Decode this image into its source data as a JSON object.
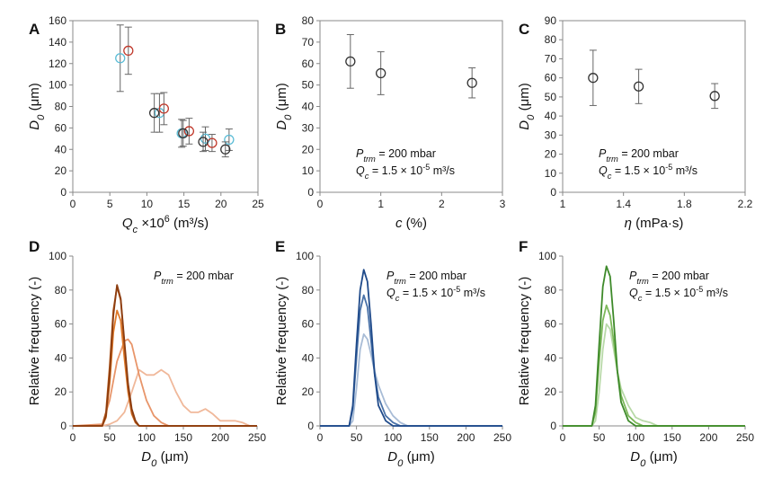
{
  "chart_data": [
    {
      "id": "A",
      "type": "scatter",
      "panel_label": "A",
      "xlabel": "Q_c ×10^6 (m³/s)",
      "ylabel": "D_0 (μm)",
      "xlim": [
        0,
        25
      ],
      "ylim": [
        0,
        160
      ],
      "xticks": [
        0,
        5,
        10,
        15,
        20,
        25
      ],
      "yticks": [
        0,
        20,
        40,
        60,
        80,
        100,
        120,
        140,
        160
      ],
      "series": [
        {
          "color": "#5bbcd6",
          "points": [
            {
              "x": 6.4,
              "y": 125,
              "err": 31
            },
            {
              "x": 11.7,
              "y": 74,
              "err": 18
            },
            {
              "x": 14.7,
              "y": 55,
              "err": 13
            },
            {
              "x": 17.9,
              "y": 50,
              "err": 11
            },
            {
              "x": 21.1,
              "y": 49,
              "err": 10
            }
          ]
        },
        {
          "color": "#c0392b",
          "points": [
            {
              "x": 7.5,
              "y": 132,
              "err": 22
            },
            {
              "x": 12.3,
              "y": 78,
              "err": 15
            },
            {
              "x": 15.7,
              "y": 57,
              "err": 12
            },
            {
              "x": 18.8,
              "y": 46,
              "err": 8
            }
          ]
        },
        {
          "color": "#333333",
          "points": [
            {
              "x": 11.0,
              "y": 74,
              "err": 18
            },
            {
              "x": 14.9,
              "y": 55,
              "err": 12
            },
            {
              "x": 17.6,
              "y": 47,
              "err": 9
            },
            {
              "x": 20.6,
              "y": 40,
              "err": 7
            }
          ]
        }
      ]
    },
    {
      "id": "B",
      "type": "scatter",
      "panel_label": "B",
      "xlabel": "c (%)",
      "ylabel": "D_0 (μm)",
      "xlim": [
        0,
        3
      ],
      "ylim": [
        0,
        80
      ],
      "xticks": [
        0,
        1,
        2,
        3
      ],
      "yticks": [
        0,
        10,
        20,
        30,
        40,
        50,
        60,
        70,
        80
      ],
      "annotation": [
        "P_trm = 200 mbar",
        "Q_c = 1.5 × 10^-5 m³/s"
      ],
      "series": [
        {
          "color": "#333333",
          "points": [
            {
              "x": 0.5,
              "y": 61,
              "err": 12.5
            },
            {
              "x": 1.0,
              "y": 55.5,
              "err": 10
            },
            {
              "x": 2.5,
              "y": 51,
              "err": 7
            }
          ]
        }
      ]
    },
    {
      "id": "C",
      "type": "scatter",
      "panel_label": "C",
      "xlabel": "η (mPa·s)",
      "ylabel": "D_0 (μm)",
      "xlim": [
        1,
        2.2
      ],
      "ylim": [
        0,
        90
      ],
      "xticks": [
        1,
        1.4,
        1.8,
        2.2
      ],
      "yticks": [
        0,
        10,
        20,
        30,
        40,
        50,
        60,
        70,
        80,
        90
      ],
      "annotation": [
        "P_trm = 200 mbar",
        "Q_c = 1.5 × 10^-5 m³/s"
      ],
      "series": [
        {
          "color": "#333333",
          "points": [
            {
              "x": 1.2,
              "y": 60,
              "err": 14.5
            },
            {
              "x": 1.5,
              "y": 55.5,
              "err": 9
            },
            {
              "x": 2.0,
              "y": 50.5,
              "err": 6.5
            }
          ]
        }
      ]
    },
    {
      "id": "D",
      "type": "line",
      "panel_label": "D",
      "xlabel": "D_0 (μm)",
      "ylabel": "Relative frequency (-)",
      "xlim": [
        0,
        250
      ],
      "ylim": [
        0,
        100
      ],
      "xticks": [
        0,
        50,
        100,
        150,
        200,
        250
      ],
      "yticks": [
        0,
        20,
        40,
        60,
        80,
        100
      ],
      "annotation": [
        "P_trm = 200 mbar"
      ],
      "series": [
        {
          "color": "#f0b89a",
          "points": [
            [
              0,
              0
            ],
            [
              40,
              0
            ],
            [
              50,
              1
            ],
            [
              60,
              3
            ],
            [
              70,
              8
            ],
            [
              80,
              20
            ],
            [
              90,
              33
            ],
            [
              100,
              30
            ],
            [
              110,
              30
            ],
            [
              120,
              33
            ],
            [
              130,
              30
            ],
            [
              140,
              20
            ],
            [
              150,
              12
            ],
            [
              160,
              8
            ],
            [
              170,
              8
            ],
            [
              180,
              10
            ],
            [
              190,
              7
            ],
            [
              200,
              3
            ],
            [
              210,
              3
            ],
            [
              220,
              3
            ],
            [
              230,
              2
            ],
            [
              240,
              0
            ],
            [
              250,
              0
            ]
          ]
        },
        {
          "color": "#e8956a",
          "points": [
            [
              0,
              0
            ],
            [
              40,
              1
            ],
            [
              50,
              15
            ],
            [
              60,
              38
            ],
            [
              70,
              50
            ],
            [
              75,
              51
            ],
            [
              80,
              48
            ],
            [
              90,
              30
            ],
            [
              100,
              15
            ],
            [
              110,
              6
            ],
            [
              120,
              2
            ],
            [
              130,
              0
            ],
            [
              250,
              0
            ]
          ]
        },
        {
          "color": "#e07a2a",
          "points": [
            [
              0,
              0
            ],
            [
              40,
              0
            ],
            [
              45,
              5
            ],
            [
              50,
              25
            ],
            [
              55,
              55
            ],
            [
              60,
              68
            ],
            [
              65,
              62
            ],
            [
              70,
              40
            ],
            [
              75,
              20
            ],
            [
              80,
              7
            ],
            [
              85,
              2
            ],
            [
              90,
              0
            ],
            [
              250,
              0
            ]
          ]
        },
        {
          "color": "#b85a1a",
          "points": [
            [
              0,
              0
            ],
            [
              40,
              0
            ],
            [
              45,
              8
            ],
            [
              50,
              35
            ],
            [
              55,
              68
            ],
            [
              60,
              82
            ],
            [
              65,
              74
            ],
            [
              70,
              48
            ],
            [
              75,
              22
            ],
            [
              80,
              8
            ],
            [
              85,
              2
            ],
            [
              90,
              0
            ],
            [
              250,
              0
            ]
          ]
        },
        {
          "color": "#8c3d10",
          "points": [
            [
              0,
              0
            ],
            [
              40,
              0
            ],
            [
              45,
              6
            ],
            [
              50,
              30
            ],
            [
              55,
              65
            ],
            [
              60,
              83
            ],
            [
              65,
              75
            ],
            [
              70,
              50
            ],
            [
              75,
              25
            ],
            [
              80,
              10
            ],
            [
              85,
              3
            ],
            [
              90,
              0
            ],
            [
              250,
              0
            ]
          ]
        }
      ]
    },
    {
      "id": "E",
      "type": "line",
      "panel_label": "E",
      "xlabel": "D_0 (μm)",
      "ylabel": "Relative frequency (-)",
      "xlim": [
        0,
        250
      ],
      "ylim": [
        0,
        100
      ],
      "xticks": [
        0,
        50,
        100,
        150,
        200,
        250
      ],
      "yticks": [
        0,
        20,
        40,
        60,
        80,
        100
      ],
      "annotation": [
        "P_trm = 200 mbar",
        "Q_c = 1.5 × 10^-5 m³/s"
      ],
      "series": [
        {
          "color": "#a8bcd6",
          "points": [
            [
              0,
              0
            ],
            [
              40,
              0
            ],
            [
              45,
              3
            ],
            [
              50,
              22
            ],
            [
              55,
              45
            ],
            [
              60,
              54
            ],
            [
              65,
              51
            ],
            [
              70,
              42
            ],
            [
              75,
              32
            ],
            [
              80,
              24
            ],
            [
              90,
              13
            ],
            [
              100,
              6
            ],
            [
              110,
              2
            ],
            [
              120,
              0
            ],
            [
              250,
              0
            ]
          ]
        },
        {
          "color": "#4a72a8",
          "points": [
            [
              0,
              0
            ],
            [
              40,
              0
            ],
            [
              45,
              10
            ],
            [
              50,
              40
            ],
            [
              55,
              68
            ],
            [
              60,
              77
            ],
            [
              65,
              70
            ],
            [
              70,
              50
            ],
            [
              75,
              30
            ],
            [
              80,
              17
            ],
            [
              90,
              6
            ],
            [
              100,
              2
            ],
            [
              110,
              0
            ],
            [
              250,
              0
            ]
          ]
        },
        {
          "color": "#1f4a8a",
          "points": [
            [
              0,
              0
            ],
            [
              40,
              0
            ],
            [
              45,
              12
            ],
            [
              50,
              48
            ],
            [
              55,
              80
            ],
            [
              60,
              92
            ],
            [
              65,
              85
            ],
            [
              70,
              60
            ],
            [
              75,
              30
            ],
            [
              80,
              12
            ],
            [
              90,
              3
            ],
            [
              100,
              0
            ],
            [
              250,
              0
            ]
          ]
        }
      ]
    },
    {
      "id": "F",
      "type": "line",
      "panel_label": "F",
      "xlabel": "D_0 (μm)",
      "ylabel": "Relative frequency (-)",
      "xlim": [
        0,
        250
      ],
      "ylim": [
        0,
        100
      ],
      "xticks": [
        0,
        50,
        100,
        150,
        200,
        250
      ],
      "yticks": [
        0,
        20,
        40,
        60,
        80,
        100
      ],
      "annotation": [
        "P_trm = 200 mbar",
        "Q_c = 1.5 × 10^-5 m³/s"
      ],
      "series": [
        {
          "color": "#b8d9a8",
          "points": [
            [
              0,
              0
            ],
            [
              40,
              0
            ],
            [
              45,
              3
            ],
            [
              50,
              20
            ],
            [
              55,
              45
            ],
            [
              60,
              60
            ],
            [
              65,
              57
            ],
            [
              70,
              45
            ],
            [
              75,
              32
            ],
            [
              80,
              22
            ],
            [
              90,
              12
            ],
            [
              100,
              5
            ],
            [
              110,
              3
            ],
            [
              120,
              2
            ],
            [
              130,
              0
            ],
            [
              250,
              0
            ]
          ]
        },
        {
          "color": "#7cb85a",
          "points": [
            [
              0,
              0
            ],
            [
              40,
              0
            ],
            [
              45,
              8
            ],
            [
              50,
              38
            ],
            [
              55,
              62
            ],
            [
              60,
              71
            ],
            [
              65,
              65
            ],
            [
              70,
              50
            ],
            [
              75,
              32
            ],
            [
              80,
              18
            ],
            [
              90,
              6
            ],
            [
              100,
              2
            ],
            [
              110,
              0
            ],
            [
              250,
              0
            ]
          ]
        },
        {
          "color": "#3e8a2a",
          "points": [
            [
              0,
              0
            ],
            [
              40,
              0
            ],
            [
              45,
              12
            ],
            [
              50,
              48
            ],
            [
              55,
              82
            ],
            [
              60,
              94
            ],
            [
              65,
              88
            ],
            [
              70,
              62
            ],
            [
              75,
              32
            ],
            [
              80,
              14
            ],
            [
              90,
              3
            ],
            [
              100,
              0
            ],
            [
              250,
              0
            ]
          ]
        }
      ]
    }
  ]
}
